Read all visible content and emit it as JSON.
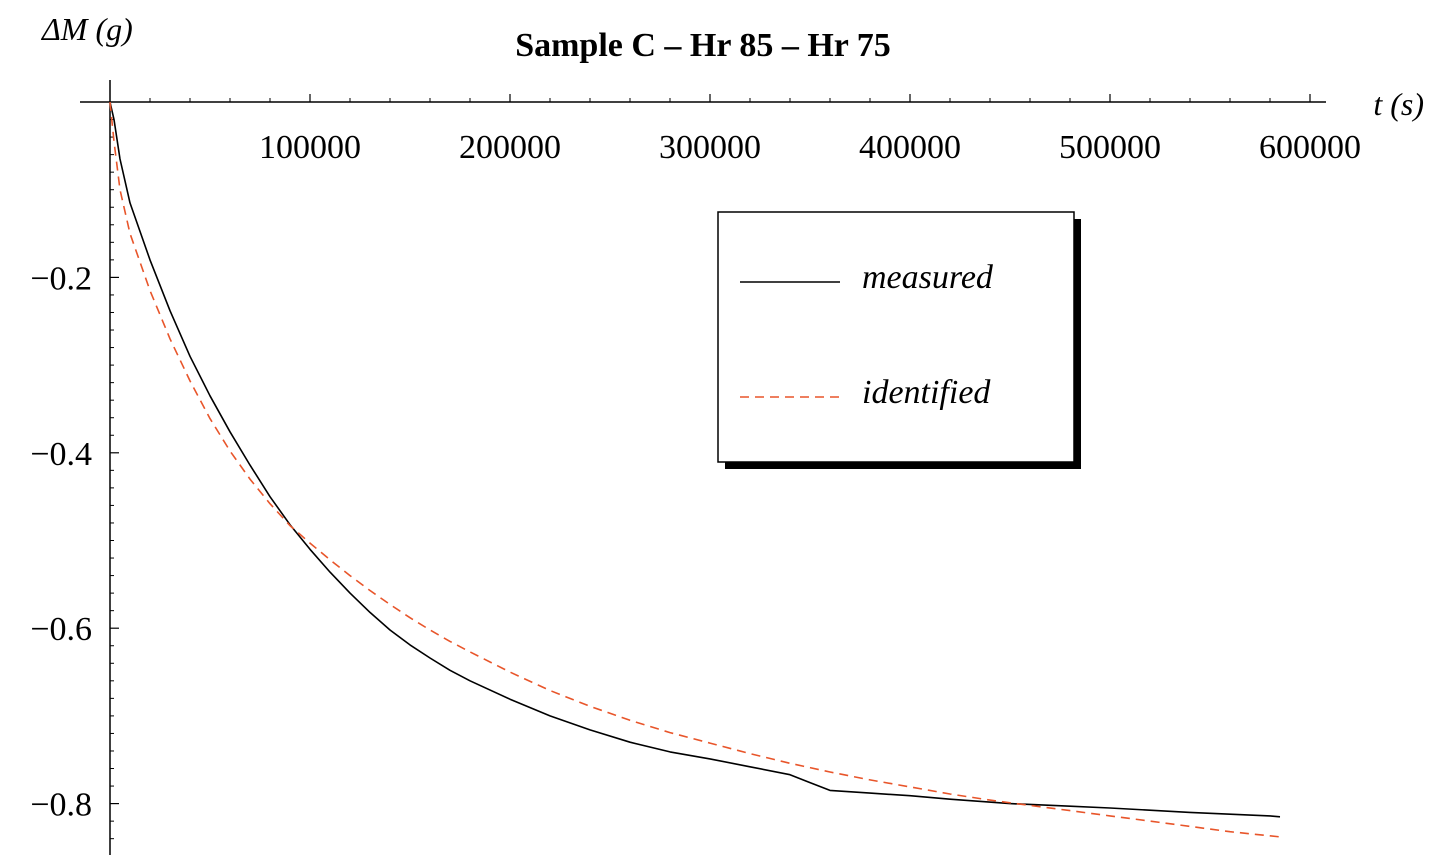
{
  "chart_data": {
    "type": "line",
    "title": "Sample C – Hr 85 – Hr 75",
    "xlabel": "t (s)",
    "ylabel": "ΔM (g)",
    "xlim": [
      0,
      600000
    ],
    "ylim": [
      -0.86,
      0.0
    ],
    "x_ticks": [
      100000,
      200000,
      300000,
      400000,
      500000,
      600000
    ],
    "x_tick_labels": [
      "100000",
      "200000",
      "300000",
      "400000",
      "500000",
      "600000"
    ],
    "y_ticks": [
      -0.2,
      -0.4,
      -0.6,
      -0.8
    ],
    "y_tick_labels": [
      "−0.2",
      "−0.4",
      "−0.6",
      "−0.8"
    ],
    "grid": false,
    "legend_position": "top-right",
    "series": [
      {
        "name": "measured",
        "color": "#000000",
        "style": "solid",
        "x": [
          0,
          2000,
          5000,
          10000,
          20000,
          30000,
          40000,
          50000,
          60000,
          70000,
          80000,
          90000,
          100000,
          110000,
          120000,
          130000,
          140000,
          150000,
          160000,
          170000,
          180000,
          200000,
          220000,
          240000,
          260000,
          280000,
          300000,
          320000,
          340000,
          350000,
          360000,
          380000,
          400000,
          420000,
          450000,
          480000,
          500000,
          540000,
          580000,
          585000
        ],
        "y": [
          0.0,
          -0.02,
          -0.065,
          -0.115,
          -0.18,
          -0.238,
          -0.29,
          -0.335,
          -0.376,
          -0.414,
          -0.45,
          -0.482,
          -0.51,
          -0.536,
          -0.56,
          -0.582,
          -0.602,
          -0.619,
          -0.634,
          -0.648,
          -0.66,
          -0.681,
          -0.7,
          -0.716,
          -0.73,
          -0.741,
          -0.749,
          -0.758,
          -0.767,
          -0.776,
          -0.785,
          -0.788,
          -0.791,
          -0.795,
          -0.8,
          -0.803,
          -0.805,
          -0.81,
          -0.814,
          -0.815
        ]
      },
      {
        "name": "identified",
        "color": "#e8552a",
        "style": "dashed",
        "x": [
          0,
          2000,
          5000,
          10000,
          20000,
          30000,
          40000,
          50000,
          60000,
          70000,
          80000,
          90000,
          100000,
          110000,
          120000,
          130000,
          140000,
          150000,
          160000,
          170000,
          180000,
          200000,
          220000,
          240000,
          260000,
          280000,
          300000,
          320000,
          340000,
          360000,
          380000,
          400000,
          420000,
          440000,
          460000,
          480000,
          500000,
          520000,
          540000,
          560000,
          585000
        ],
        "y": [
          0.0,
          -0.045,
          -0.1,
          -0.15,
          -0.215,
          -0.27,
          -0.318,
          -0.361,
          -0.398,
          -0.43,
          -0.458,
          -0.483,
          -0.503,
          -0.522,
          -0.54,
          -0.557,
          -0.573,
          -0.588,
          -0.602,
          -0.615,
          -0.627,
          -0.65,
          -0.671,
          -0.689,
          -0.705,
          -0.719,
          -0.731,
          -0.743,
          -0.754,
          -0.764,
          -0.773,
          -0.781,
          -0.789,
          -0.796,
          -0.802,
          -0.808,
          -0.814,
          -0.82,
          -0.826,
          -0.832,
          -0.838
        ]
      }
    ]
  }
}
